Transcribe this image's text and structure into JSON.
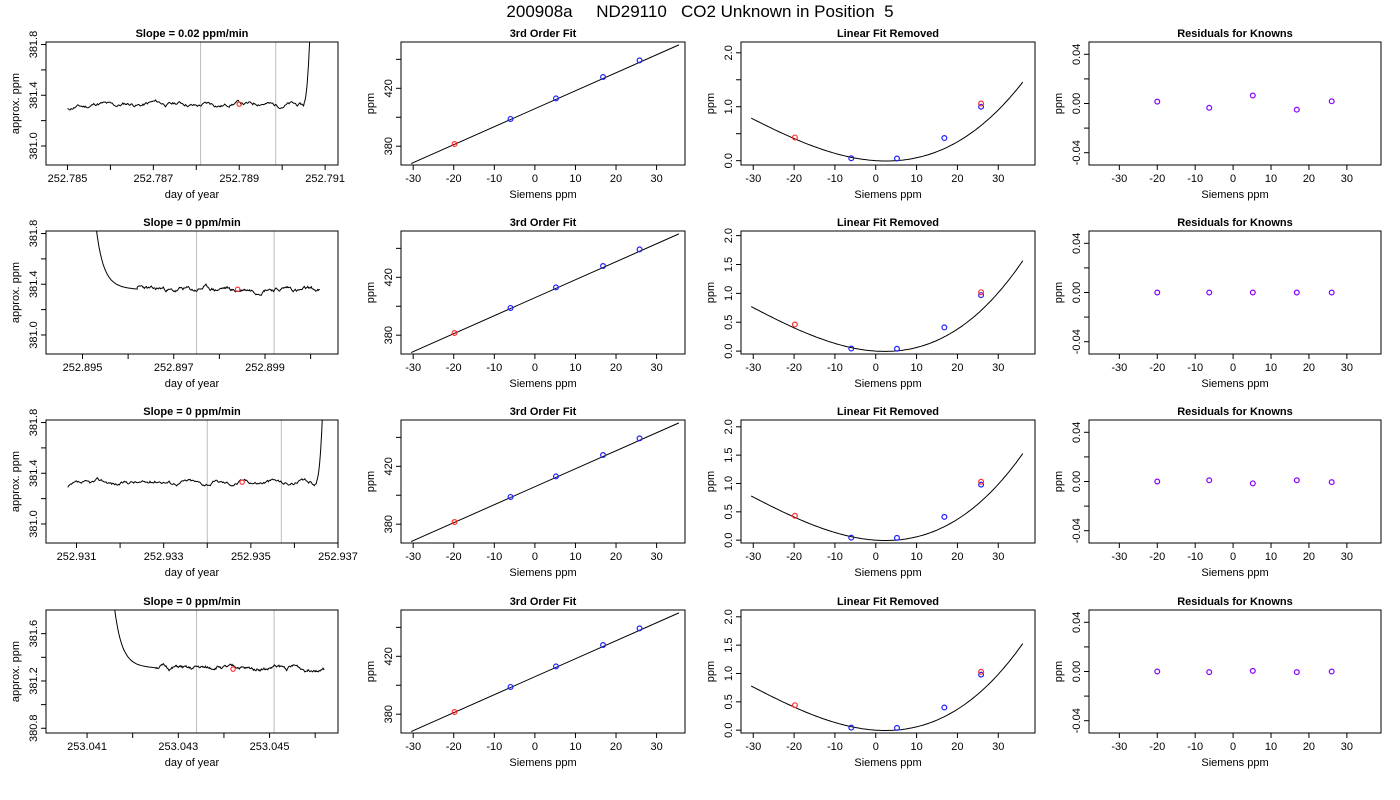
{
  "figure_title": "200908a     ND29110   CO2 Unknown in Position  5",
  "colors": {
    "trace": "#000000",
    "vline": "#bdbdbd",
    "known": "#1f1fff",
    "unknown": "#ff3030",
    "residual": "#8800ff"
  },
  "chart_data": [
    {
      "id": "r1-trace",
      "type": "line",
      "title": "Slope =  0.02  ppm/min",
      "xlabel": "day of year",
      "ylabel": "approx. ppm",
      "xlim": [
        252.7845,
        252.7913
      ],
      "ylim": [
        380.85,
        381.82
      ],
      "xticks": [
        252.785,
        252.786,
        252.787,
        252.788,
        252.789,
        252.79,
        252.791
      ],
      "xtick_labels": [
        "252.785",
        "",
        "252.787",
        "",
        "252.789",
        "",
        "252.791"
      ],
      "yticks": [
        381.0,
        381.2,
        381.4,
        381.6,
        381.8
      ],
      "ytick_labels": [
        "381.0",
        "",
        "381.4",
        "",
        "381.8"
      ],
      "vlines": [
        252.7881,
        252.78985
      ],
      "marker": [
        252.789,
        381.33
      ],
      "trace": {
        "start": 252.785,
        "flat_end": 252.7905,
        "end": 252.79065,
        "level": 381.33,
        "noise": 0.022,
        "seed": 11,
        "spike": "end",
        "spike_to": 381.82
      }
    },
    {
      "id": "r1-fit",
      "type": "scatter",
      "title": "3rd Order Fit",
      "xlabel": "Siemens ppm",
      "ylabel": "ppm",
      "xlim": [
        -33,
        37
      ],
      "ylim": [
        367,
        452
      ],
      "xticks": [
        -30,
        -20,
        -10,
        0,
        10,
        20,
        30
      ],
      "yticks": [
        380,
        400,
        420,
        440
      ],
      "ytick_labels": [
        "380",
        "",
        "420",
        ""
      ],
      "line": {
        "x": [
          -30.5,
          35.5
        ],
        "y": [
          368,
          450
        ]
      },
      "points": [
        {
          "x": -19.8,
          "y": 381.5,
          "c": "unknown"
        },
        {
          "x": -6,
          "y": 398.8,
          "c": "known"
        },
        {
          "x": 5.2,
          "y": 413,
          "c": "known"
        },
        {
          "x": 16.8,
          "y": 427.8,
          "c": "known"
        },
        {
          "x": 25.8,
          "y": 439.3,
          "c": "known"
        }
      ]
    },
    {
      "id": "r1-lin",
      "type": "scatter",
      "title": "Linear Fit Removed",
      "xlabel": "Siemens ppm",
      "ylabel": "ppm",
      "xlim": [
        -33,
        39
      ],
      "ylim": [
        -0.08,
        2.2
      ],
      "xticks": [
        -30,
        -20,
        -10,
        0,
        10,
        20,
        30
      ],
      "yticks": [
        0,
        0.5,
        1,
        1.5,
        2
      ],
      "ytick_labels": [
        "0.0",
        "",
        "1.0",
        "",
        "2.0"
      ],
      "curve": {
        "a": 0.00095,
        "b": -0.005,
        "c": 0,
        "d": 8.7e-06,
        "x0": -30.5,
        "x1": 36
      },
      "points": [
        {
          "x": -19.8,
          "y": 0.43,
          "c": "unknown"
        },
        {
          "x": -6,
          "y": 0.045,
          "c": "known"
        },
        {
          "x": 5.2,
          "y": 0.04,
          "c": "known"
        },
        {
          "x": 16.8,
          "y": 0.42,
          "c": "known"
        },
        {
          "x": 25.8,
          "y": 1.0,
          "c": "known"
        },
        {
          "x": 25.8,
          "y": 1.06,
          "c": "unknown"
        }
      ]
    },
    {
      "id": "r1-res",
      "type": "scatter",
      "title": "Residuals for Knowns",
      "xlabel": "Siemens ppm",
      "ylabel": "ppm",
      "xlim": [
        -38,
        39
      ],
      "ylim": [
        -0.05,
        0.05
      ],
      "xticks": [
        -30,
        -20,
        -10,
        0,
        10,
        20,
        30
      ],
      "yticks": [
        -0.04,
        -0.02,
        0,
        0.02,
        0.04
      ],
      "ytick_labels": [
        "-0.04",
        "",
        "0.00",
        "",
        "0.04"
      ],
      "points": [
        {
          "x": -20,
          "y": 0.0015,
          "c": "residual"
        },
        {
          "x": -6.3,
          "y": -0.0035,
          "c": "residual"
        },
        {
          "x": 5.2,
          "y": 0.0065,
          "c": "residual"
        },
        {
          "x": 16.8,
          "y": -0.005,
          "c": "residual"
        },
        {
          "x": 26,
          "y": 0.0018,
          "c": "residual"
        }
      ]
    },
    {
      "id": "r2-trace",
      "type": "line",
      "title": "Slope =  0  ppm/min",
      "xlabel": "day of year",
      "ylabel": "approx. ppm",
      "xlim": [
        252.8942,
        252.9006
      ],
      "ylim": [
        380.85,
        381.82
      ],
      "xticks": [
        252.895,
        252.896,
        252.897,
        252.898,
        252.899,
        252.9
      ],
      "xtick_labels": [
        "252.895",
        "",
        "252.897",
        "",
        "252.899",
        ""
      ],
      "yticks": [
        381.0,
        381.2,
        381.4,
        381.6,
        381.8
      ],
      "ytick_labels": [
        "381.0",
        "",
        "381.4",
        "",
        "381.8"
      ],
      "vlines": [
        252.8975,
        252.8992
      ],
      "marker": [
        252.8984,
        381.36
      ],
      "trace": {
        "start": 252.8953,
        "flat_start": 252.8962,
        "end": 252.9002,
        "level": 381.36,
        "noise": 0.022,
        "seed": 23,
        "spike": "start",
        "spike_from": 381.82
      }
    },
    {
      "id": "r2-fit",
      "type": "scatter",
      "title": "3rd Order Fit",
      "xlabel": "Siemens ppm",
      "ylabel": "ppm",
      "xlim": [
        -33,
        37
      ],
      "ylim": [
        367,
        452
      ],
      "xticks": [
        -30,
        -20,
        -10,
        0,
        10,
        20,
        30
      ],
      "yticks": [
        380,
        400,
        420,
        440
      ],
      "ytick_labels": [
        "380",
        "",
        "420",
        ""
      ],
      "line": {
        "x": [
          -30.5,
          35.5
        ],
        "y": [
          368,
          450
        ]
      },
      "points": [
        {
          "x": -19.8,
          "y": 381.5,
          "c": "unknown"
        },
        {
          "x": -6,
          "y": 398.8,
          "c": "known"
        },
        {
          "x": 5.2,
          "y": 413,
          "c": "known"
        },
        {
          "x": 16.8,
          "y": 427.8,
          "c": "known"
        },
        {
          "x": 25.8,
          "y": 439.3,
          "c": "known"
        }
      ]
    },
    {
      "id": "r2-lin",
      "type": "scatter",
      "title": "Linear Fit Removed",
      "xlabel": "Siemens ppm",
      "ylabel": "ppm",
      "xlim": [
        -33,
        39
      ],
      "ylim": [
        -0.05,
        2.08
      ],
      "xticks": [
        -30,
        -20,
        -10,
        0,
        10,
        20,
        30
      ],
      "yticks": [
        0,
        0.5,
        1,
        1.5,
        2
      ],
      "ytick_labels": [
        "0.0",
        "0.5",
        "1.0",
        "1.5",
        "2.0"
      ],
      "curve": {
        "a": 0.00098,
        "b": -0.0045,
        "c": 0,
        "d": 9.8e-06,
        "x0": -30.5,
        "x1": 36
      },
      "points": [
        {
          "x": -19.8,
          "y": 0.46,
          "c": "unknown"
        },
        {
          "x": -6,
          "y": 0.045,
          "c": "known"
        },
        {
          "x": 5.2,
          "y": 0.04,
          "c": "known"
        },
        {
          "x": 16.8,
          "y": 0.41,
          "c": "known"
        },
        {
          "x": 25.8,
          "y": 0.97,
          "c": "known"
        },
        {
          "x": 25.8,
          "y": 1.02,
          "c": "unknown"
        }
      ]
    },
    {
      "id": "r2-res",
      "type": "scatter",
      "title": "Residuals for Knowns",
      "xlabel": "Siemens ppm",
      "ylabel": "ppm",
      "xlim": [
        -38,
        39
      ],
      "ylim": [
        -0.05,
        0.05
      ],
      "xticks": [
        -30,
        -20,
        -10,
        0,
        10,
        20,
        30
      ],
      "yticks": [
        -0.04,
        -0.02,
        0,
        0.02,
        0.04
      ],
      "ytick_labels": [
        "-0.04",
        "",
        "0.00",
        "",
        "0.04"
      ],
      "points": [
        {
          "x": -20,
          "y": 0,
          "c": "residual"
        },
        {
          "x": -6.3,
          "y": 0,
          "c": "residual"
        },
        {
          "x": 5.2,
          "y": 0,
          "c": "residual"
        },
        {
          "x": 16.8,
          "y": 0,
          "c": "residual"
        },
        {
          "x": 26,
          "y": 0,
          "c": "residual"
        }
      ]
    },
    {
      "id": "r3-trace",
      "type": "line",
      "title": "Slope =  0  ppm/min",
      "xlabel": "day of year",
      "ylabel": "approx. ppm",
      "xlim": [
        252.9303,
        252.937
      ],
      "ylim": [
        380.85,
        381.82
      ],
      "xticks": [
        252.931,
        252.932,
        252.933,
        252.934,
        252.935,
        252.936,
        252.937
      ],
      "xtick_labels": [
        "252.931",
        "",
        "252.933",
        "",
        "252.935",
        "",
        "252.937"
      ],
      "yticks": [
        381.0,
        381.2,
        381.4,
        381.6,
        381.8
      ],
      "ytick_labels": [
        "381.0",
        "",
        "381.4",
        "",
        "381.8"
      ],
      "vlines": [
        252.934,
        252.9357
      ],
      "marker": [
        252.9348,
        381.33
      ],
      "trace": {
        "start": 252.9308,
        "flat_end": 252.9365,
        "end": 252.93665,
        "level": 381.33,
        "noise": 0.022,
        "seed": 37,
        "spike": "end",
        "spike_to": 381.82
      }
    },
    {
      "id": "r3-fit",
      "type": "scatter",
      "title": "3rd Order Fit",
      "xlabel": "Siemens ppm",
      "ylabel": "ppm",
      "xlim": [
        -33,
        37
      ],
      "ylim": [
        367,
        452
      ],
      "xticks": [
        -30,
        -20,
        -10,
        0,
        10,
        20,
        30
      ],
      "yticks": [
        380,
        400,
        420,
        440
      ],
      "ytick_labels": [
        "380",
        "",
        "420",
        ""
      ],
      "line": {
        "x": [
          -30.5,
          35.5
        ],
        "y": [
          368,
          450
        ]
      },
      "points": [
        {
          "x": -19.8,
          "y": 381.5,
          "c": "unknown"
        },
        {
          "x": -6,
          "y": 398.8,
          "c": "known"
        },
        {
          "x": 5.2,
          "y": 413,
          "c": "known"
        },
        {
          "x": 16.8,
          "y": 427.8,
          "c": "known"
        },
        {
          "x": 25.8,
          "y": 439.3,
          "c": "known"
        }
      ]
    },
    {
      "id": "r3-lin",
      "type": "scatter",
      "title": "Linear Fit Removed",
      "xlabel": "Siemens ppm",
      "ylabel": "ppm",
      "xlim": [
        -33,
        39
      ],
      "ylim": [
        -0.05,
        2.12
      ],
      "xticks": [
        -30,
        -20,
        -10,
        0,
        10,
        20,
        30
      ],
      "yticks": [
        0,
        0.5,
        1,
        1.5,
        2
      ],
      "ytick_labels": [
        "0.0",
        "0.5",
        "1.0",
        "1.5",
        "2.0"
      ],
      "curve": {
        "a": 0.00097,
        "b": -0.0048,
        "c": 0,
        "d": 9.5e-06,
        "x0": -30.5,
        "x1": 36
      },
      "points": [
        {
          "x": -19.8,
          "y": 0.43,
          "c": "unknown"
        },
        {
          "x": -6,
          "y": 0.045,
          "c": "known"
        },
        {
          "x": 5.2,
          "y": 0.04,
          "c": "known"
        },
        {
          "x": 16.8,
          "y": 0.41,
          "c": "known"
        },
        {
          "x": 25.8,
          "y": 0.98,
          "c": "known"
        },
        {
          "x": 25.8,
          "y": 1.03,
          "c": "unknown"
        }
      ]
    },
    {
      "id": "r3-res",
      "type": "scatter",
      "title": "Residuals for Knowns",
      "xlabel": "Siemens ppm",
      "ylabel": "ppm",
      "xlim": [
        -38,
        39
      ],
      "ylim": [
        -0.05,
        0.05
      ],
      "xticks": [
        -30,
        -20,
        -10,
        0,
        10,
        20,
        30
      ],
      "yticks": [
        -0.04,
        -0.02,
        0,
        0.02,
        0.04
      ],
      "ytick_labels": [
        "-0.04",
        "",
        "0.00",
        "",
        "0.04"
      ],
      "points": [
        {
          "x": -20,
          "y": 0,
          "c": "residual"
        },
        {
          "x": -6.3,
          "y": 0.001,
          "c": "residual"
        },
        {
          "x": 5.2,
          "y": -0.0015,
          "c": "residual"
        },
        {
          "x": 16.8,
          "y": 0.001,
          "c": "residual"
        },
        {
          "x": 26,
          "y": -0.0005,
          "c": "residual"
        }
      ]
    },
    {
      "id": "r4-trace",
      "type": "line",
      "title": "Slope =  0  ppm/min",
      "xlabel": "day of year",
      "ylabel": "approx. ppm",
      "xlim": [
        253.0401,
        253.0465
      ],
      "ylim": [
        380.76,
        381.8
      ],
      "xticks": [
        253.041,
        253.042,
        253.043,
        253.044,
        253.045,
        253.046
      ],
      "xtick_labels": [
        "253.041",
        "",
        "253.043",
        "",
        "253.045",
        ""
      ],
      "yticks": [
        380.8,
        381.0,
        381.2,
        381.4,
        381.6
      ],
      "ytick_labels": [
        "380.8",
        "",
        "381.2",
        "",
        "381.6"
      ],
      "vlines": [
        253.0434,
        253.0451
      ],
      "marker": [
        253.0442,
        381.3
      ],
      "trace": {
        "start": 253.0416,
        "flat_start": 253.0425,
        "end": 253.0462,
        "level": 381.31,
        "noise": 0.022,
        "seed": 51,
        "spike": "start",
        "spike_from": 381.8
      }
    },
    {
      "id": "r4-fit",
      "type": "scatter",
      "title": "3rd Order Fit",
      "xlabel": "Siemens ppm",
      "ylabel": "ppm",
      "xlim": [
        -33,
        37
      ],
      "ylim": [
        367,
        452
      ],
      "xticks": [
        -30,
        -20,
        -10,
        0,
        10,
        20,
        30
      ],
      "yticks": [
        380,
        400,
        420,
        440
      ],
      "ytick_labels": [
        "380",
        "",
        "420",
        ""
      ],
      "line": {
        "x": [
          -30.5,
          35.5
        ],
        "y": [
          368,
          450
        ]
      },
      "points": [
        {
          "x": -19.8,
          "y": 381.5,
          "c": "unknown"
        },
        {
          "x": -6,
          "y": 398.8,
          "c": "known"
        },
        {
          "x": 5.2,
          "y": 413,
          "c": "known"
        },
        {
          "x": 16.8,
          "y": 427.8,
          "c": "known"
        },
        {
          "x": 25.8,
          "y": 439.3,
          "c": "known"
        }
      ]
    },
    {
      "id": "r4-lin",
      "type": "scatter",
      "title": "Linear Fit Removed",
      "xlabel": "Siemens ppm",
      "ylabel": "ppm",
      "xlim": [
        -33,
        39
      ],
      "ylim": [
        -0.05,
        2.12
      ],
      "xticks": [
        -30,
        -20,
        -10,
        0,
        10,
        20,
        30
      ],
      "yticks": [
        0,
        0.5,
        1,
        1.5,
        2
      ],
      "ytick_labels": [
        "0.0",
        "0.5",
        "1.0",
        "1.5",
        "2.0"
      ],
      "curve": {
        "a": 0.00097,
        "b": -0.0048,
        "c": 0,
        "d": 9.5e-06,
        "x0": -30.5,
        "x1": 36
      },
      "points": [
        {
          "x": -19.8,
          "y": 0.44,
          "c": "unknown"
        },
        {
          "x": -6,
          "y": 0.045,
          "c": "known"
        },
        {
          "x": 5.2,
          "y": 0.04,
          "c": "known"
        },
        {
          "x": 16.8,
          "y": 0.4,
          "c": "known"
        },
        {
          "x": 25.8,
          "y": 0.98,
          "c": "known"
        },
        {
          "x": 25.8,
          "y": 1.03,
          "c": "unknown"
        }
      ]
    },
    {
      "id": "r4-res",
      "type": "scatter",
      "title": "Residuals for Knowns",
      "xlabel": "Siemens ppm",
      "ylabel": "ppm",
      "xlim": [
        -38,
        39
      ],
      "ylim": [
        -0.05,
        0.05
      ],
      "xticks": [
        -30,
        -20,
        -10,
        0,
        10,
        20,
        30
      ],
      "yticks": [
        -0.04,
        -0.02,
        0,
        0.02,
        0.04
      ],
      "ytick_labels": [
        "-0.04",
        "",
        "0.00",
        "",
        "0.04"
      ],
      "points": [
        {
          "x": -20,
          "y": 0,
          "c": "residual"
        },
        {
          "x": -6.3,
          "y": -0.0005,
          "c": "residual"
        },
        {
          "x": 5.2,
          "y": 0.0005,
          "c": "residual"
        },
        {
          "x": 16.8,
          "y": -0.0005,
          "c": "residual"
        },
        {
          "x": 26,
          "y": 0,
          "c": "residual"
        }
      ]
    }
  ]
}
